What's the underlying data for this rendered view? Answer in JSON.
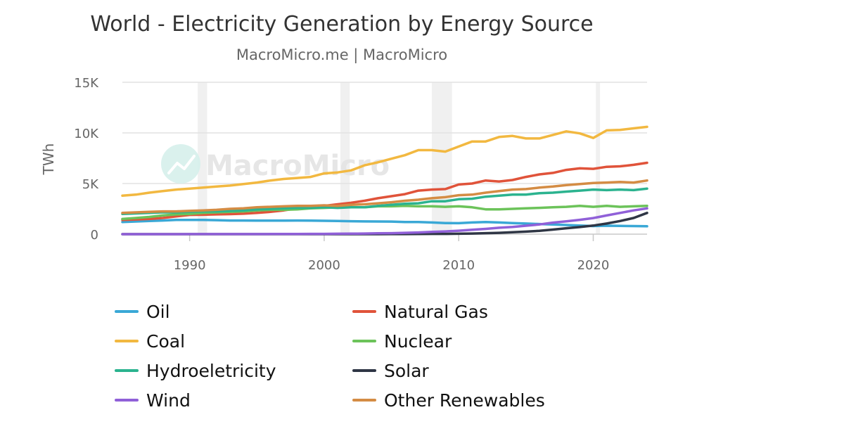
{
  "chart_data": {
    "type": "line",
    "title": "World - Electricity Generation by Energy Source",
    "subtitle": "MacroMicro.me | MacroMicro",
    "watermark": "MacroMicro",
    "xlabel": "",
    "ylabel": "TWh",
    "xlim": [
      1985,
      2024
    ],
    "ylim": [
      0,
      15000
    ],
    "x_ticks": [
      1990,
      2000,
      2010,
      2020
    ],
    "y_ticks": [
      0,
      5000,
      10000,
      15000
    ],
    "y_tick_labels": [
      "0",
      "5K",
      "10K",
      "15K"
    ],
    "grid": "horizontal",
    "legend_position": "bottom",
    "shaded_periods": [
      [
        1990.6,
        1991.3
      ],
      [
        2001.2,
        2001.9
      ],
      [
        2008.0,
        2009.5
      ],
      [
        2020.2,
        2020.5
      ]
    ],
    "x": [
      1985,
      1986,
      1987,
      1988,
      1989,
      1990,
      1991,
      1992,
      1993,
      1994,
      1995,
      1996,
      1997,
      1998,
      1999,
      2000,
      2001,
      2002,
      2003,
      2004,
      2005,
      2006,
      2007,
      2008,
      2009,
      2010,
      2011,
      2012,
      2013,
      2014,
      2015,
      2016,
      2017,
      2018,
      2019,
      2020,
      2021,
      2022,
      2023,
      2024
    ],
    "series": [
      {
        "name": "Oil",
        "color": "#3aa8d6",
        "values": [
          1200,
          1250,
          1300,
          1350,
          1400,
          1400,
          1400,
          1380,
          1350,
          1350,
          1330,
          1330,
          1330,
          1350,
          1340,
          1320,
          1300,
          1280,
          1260,
          1250,
          1240,
          1200,
          1200,
          1150,
          1100,
          1080,
          1150,
          1200,
          1150,
          1100,
          1050,
          1000,
          950,
          900,
          850,
          800,
          830,
          820,
          800,
          780
        ]
      },
      {
        "name": "Natural Gas",
        "color": "#e0533a",
        "values": [
          1400,
          1450,
          1500,
          1600,
          1750,
          1900,
          1920,
          1950,
          1980,
          2020,
          2100,
          2200,
          2350,
          2550,
          2700,
          2800,
          2950,
          3100,
          3300,
          3550,
          3750,
          3950,
          4300,
          4400,
          4450,
          4900,
          5000,
          5300,
          5200,
          5350,
          5650,
          5900,
          6050,
          6350,
          6500,
          6450,
          6650,
          6700,
          6850,
          7050
        ]
      },
      {
        "name": "Coal",
        "color": "#f2b840",
        "values": [
          3800,
          3900,
          4100,
          4250,
          4400,
          4500,
          4600,
          4700,
          4800,
          4950,
          5100,
          5300,
          5450,
          5550,
          5650,
          6000,
          6100,
          6300,
          6800,
          7100,
          7450,
          7800,
          8300,
          8300,
          8150,
          8650,
          9150,
          9150,
          9600,
          9700,
          9450,
          9450,
          9800,
          10150,
          9950,
          9500,
          10250,
          10300,
          10450,
          10600
        ]
      },
      {
        "name": "Nuclear",
        "color": "#6cc35a",
        "values": [
          1500,
          1600,
          1700,
          1850,
          1950,
          2000,
          2100,
          2150,
          2200,
          2250,
          2350,
          2400,
          2400,
          2450,
          2550,
          2600,
          2650,
          2650,
          2650,
          2750,
          2750,
          2800,
          2750,
          2750,
          2700,
          2750,
          2650,
          2450,
          2450,
          2500,
          2550,
          2600,
          2650,
          2700,
          2800,
          2700,
          2800,
          2700,
          2750,
          2800
        ]
      },
      {
        "name": "Hydroeletricity",
        "color": "#2bb38f",
        "values": [
          2000,
          2050,
          2100,
          2150,
          2150,
          2200,
          2250,
          2250,
          2300,
          2350,
          2450,
          2500,
          2550,
          2600,
          2600,
          2650,
          2600,
          2650,
          2650,
          2800,
          2900,
          3000,
          3050,
          3250,
          3250,
          3450,
          3500,
          3700,
          3800,
          3900,
          3900,
          4050,
          4100,
          4200,
          4300,
          4400,
          4350,
          4400,
          4350,
          4500
        ]
      },
      {
        "name": "Solar",
        "color": "#2f3645",
        "values": [
          0,
          0,
          0,
          0,
          0,
          0,
          0,
          0,
          0,
          0,
          0,
          0,
          0,
          0,
          0,
          0,
          0,
          0,
          0,
          0,
          5,
          10,
          15,
          25,
          30,
          40,
          60,
          100,
          130,
          190,
          250,
          330,
          450,
          580,
          700,
          850,
          1050,
          1300,
          1600,
          2100
        ]
      },
      {
        "name": "Wind",
        "color": "#9060d8",
        "values": [
          0,
          0,
          0,
          0,
          0,
          5,
          5,
          10,
          10,
          10,
          10,
          15,
          15,
          20,
          25,
          30,
          40,
          50,
          60,
          80,
          100,
          130,
          170,
          220,
          270,
          340,
          430,
          520,
          630,
          710,
          830,
          960,
          1140,
          1270,
          1420,
          1590,
          1850,
          2100,
          2350,
          2550
        ]
      },
      {
        "name": "Other Renewables",
        "color": "#d48c44",
        "values": [
          2100,
          2150,
          2200,
          2250,
          2250,
          2300,
          2350,
          2400,
          2500,
          2550,
          2650,
          2700,
          2750,
          2800,
          2800,
          2850,
          2800,
          2900,
          2950,
          3050,
          3150,
          3300,
          3400,
          3550,
          3650,
          3850,
          3900,
          4100,
          4250,
          4400,
          4450,
          4600,
          4700,
          4850,
          4950,
          5050,
          5100,
          5150,
          5100,
          5300
        ]
      }
    ]
  }
}
